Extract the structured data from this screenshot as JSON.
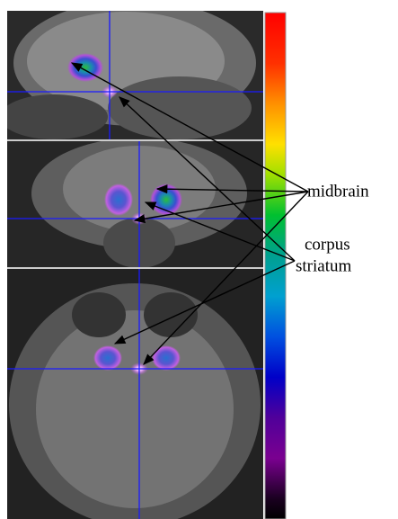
{
  "annotations": [
    "midbrain",
    "corpus",
    "striatum"
  ]
}
